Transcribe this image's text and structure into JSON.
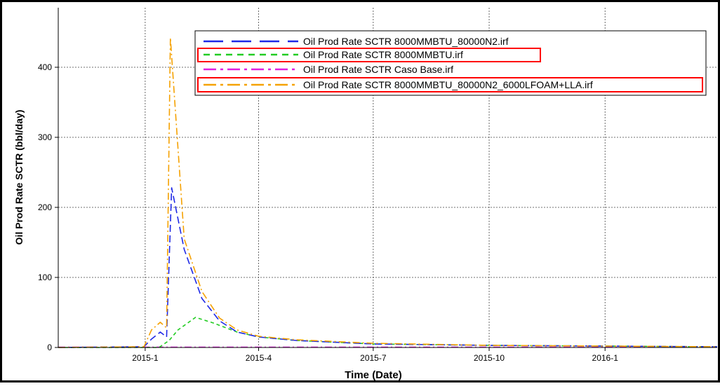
{
  "chart_data": {
    "type": "line",
    "title": "",
    "xlabel": "Time (Date)",
    "ylabel": "Oil Prod Rate SCTR (bbl/day)",
    "x_tick_labels": [
      "2015-1",
      "2015-4",
      "2015-7",
      "2015-10",
      "2016-1"
    ],
    "y_tick_labels": [
      "0",
      "100",
      "200",
      "300",
      "400"
    ],
    "x_range": [
      "2014-10-24",
      "2016-03-30"
    ],
    "ylim": [
      0,
      485
    ],
    "grid": true,
    "legend_position": "top-right",
    "highlighted_series": [
      "Oil Prod Rate SCTR 8000MMBTU.irf",
      "Oil Prod Rate SCTR 8000MMBTU_80000N2_6000LFOAM+LLA.irf"
    ],
    "highlight_color": "#ff0000",
    "series": [
      {
        "name": "Oil Prod Rate SCTR 8000MMBTU_80000N2.irf",
        "color": "#1e28e6",
        "dash": "long-dash",
        "x": [
          "2014-10-24",
          "2014-12-31",
          "2015-01-06",
          "2015-01-13",
          "2015-01-18",
          "2015-01-22",
          "2015-02-01",
          "2015-02-15",
          "2015-03-01",
          "2015-03-15",
          "2015-04-01",
          "2015-05-01",
          "2015-07-01",
          "2015-10-01",
          "2016-01-01",
          "2016-03-30"
        ],
        "y": [
          0,
          1,
          12,
          22,
          15,
          228,
          140,
          70,
          38,
          22,
          15,
          10,
          5,
          3,
          2,
          1
        ]
      },
      {
        "name": "Oil Prod Rate SCTR 8000MMBTU.irf",
        "color": "#22cc22",
        "dash": "short-dash",
        "x": [
          "2014-10-24",
          "2015-01-12",
          "2015-01-20",
          "2015-01-27",
          "2015-02-10",
          "2015-02-24",
          "2015-03-15",
          "2015-04-01",
          "2015-05-01",
          "2015-07-01",
          "2015-10-01",
          "2016-03-30"
        ],
        "y": [
          0,
          0,
          10,
          25,
          43,
          35,
          22,
          15,
          10,
          5,
          3,
          1
        ]
      },
      {
        "name": "Oil Prod Rate SCTR Caso Base.irf",
        "color": "#e020e0",
        "dash": "dash-dot",
        "x": [
          "2014-10-24",
          "2016-03-30"
        ],
        "y": [
          0.5,
          0.5
        ]
      },
      {
        "name": "Oil Prod Rate SCTR 8000MMBTU_80000N2_6000LFOAM+LLA.irf",
        "color": "#f5a100",
        "dash": "dash-dot",
        "x": [
          "2014-10-24",
          "2014-12-31",
          "2015-01-06",
          "2015-01-13",
          "2015-01-18",
          "2015-01-21",
          "2015-02-01",
          "2015-02-15",
          "2015-03-01",
          "2015-03-15",
          "2015-04-01",
          "2015-05-01",
          "2015-07-01",
          "2015-10-01",
          "2016-01-01",
          "2016-03-30"
        ],
        "y": [
          0,
          1,
          25,
          36,
          28,
          442,
          155,
          80,
          42,
          25,
          16,
          11,
          6,
          3,
          2,
          1
        ]
      }
    ]
  }
}
